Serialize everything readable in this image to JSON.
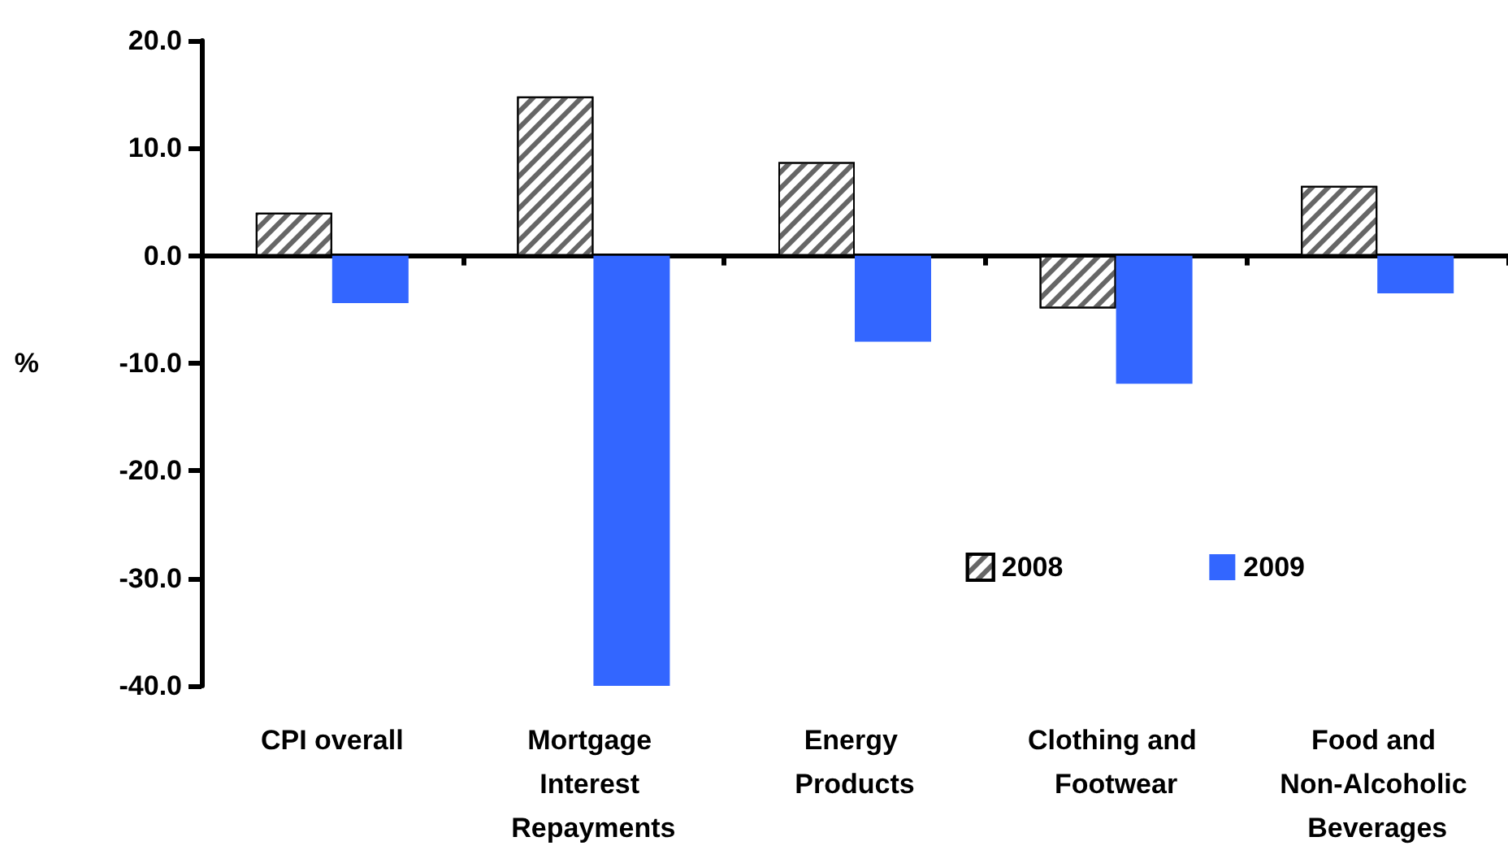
{
  "chart_data": {
    "type": "bar",
    "ylabel": "%",
    "categories": [
      "CPI overall",
      "Mortgage Interest Repayments",
      "Energy Products",
      "Clothing and Footwear",
      "Food and Non-Alcoholic Beverages"
    ],
    "series": [
      {
        "name": "2008",
        "color": "#ffffff",
        "values": [
          4.0,
          14.8,
          8.7,
          -4.9,
          6.5
        ]
      },
      {
        "name": "2009",
        "color": "#3366ff",
        "values": [
          -4.4,
          -40.0,
          -8.0,
          -11.9,
          -3.5
        ]
      }
    ],
    "ylim": [
      -40,
      20
    ],
    "yticks": [
      {
        "value": -40,
        "label": "-40.0"
      },
      {
        "value": -30,
        "label": "-30.0"
      },
      {
        "value": -20,
        "label": "-20.0"
      },
      {
        "value": -10,
        "label": "-10.0"
      },
      {
        "value": 0,
        "label": "0.0"
      },
      {
        "value": 10,
        "label": "10.0"
      },
      {
        "value": 20,
        "label": "20.0"
      }
    ],
    "legend": "bottom right"
  }
}
